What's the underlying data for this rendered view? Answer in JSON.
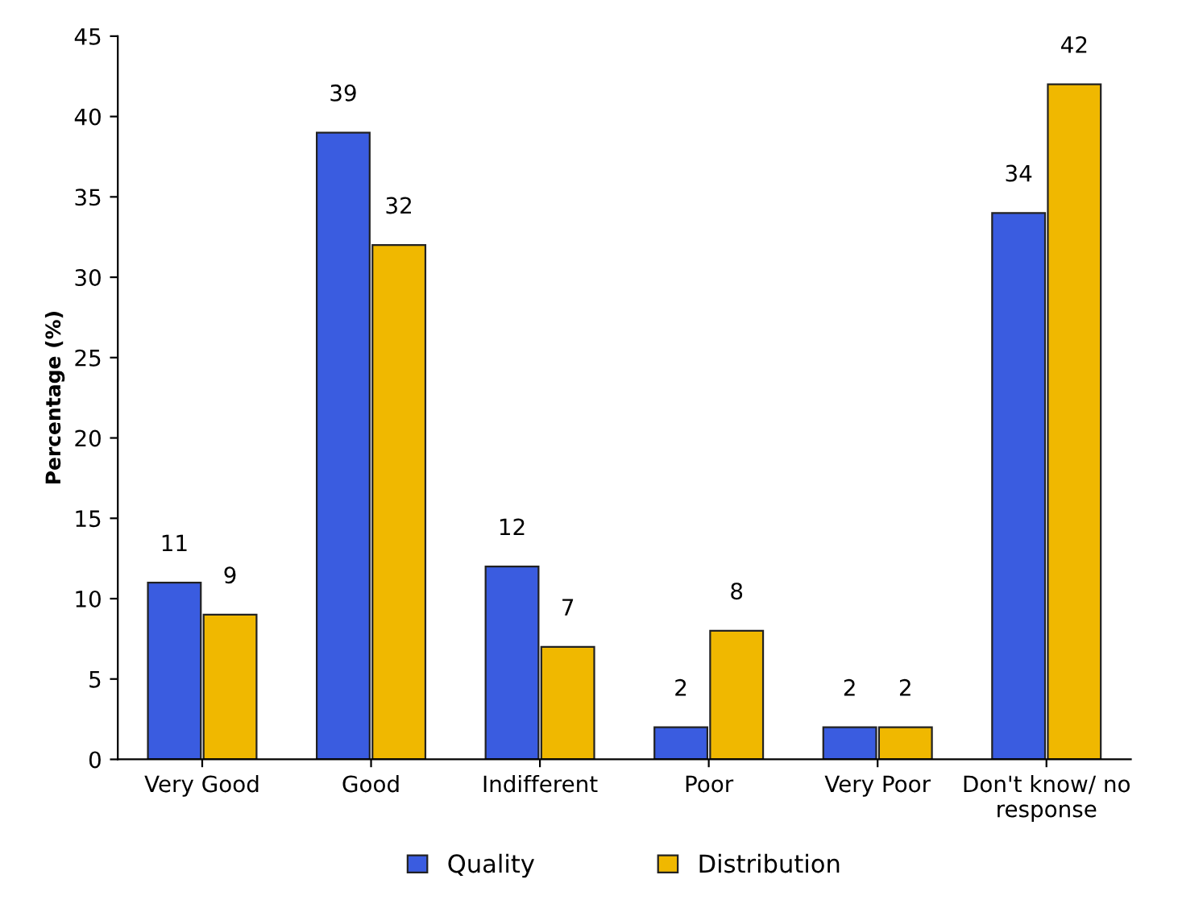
{
  "chart_data": {
    "type": "bar",
    "ylabel": "Percentage (%)",
    "categories": [
      "Very Good",
      "Good",
      "Indifferent",
      "Poor",
      "Very Poor",
      "Don't know/ no response"
    ],
    "series": [
      {
        "name": "Quality",
        "color": "#3a5ce0",
        "values": [
          11,
          39,
          12,
          2,
          2,
          34
        ]
      },
      {
        "name": "Distribution",
        "color": "#f0b800",
        "values": [
          9,
          32,
          7,
          8,
          2,
          42
        ]
      }
    ],
    "ylim": [
      0,
      45
    ],
    "yticks": [
      0,
      5,
      10,
      15,
      20,
      25,
      30,
      35,
      40,
      45
    ],
    "data_labels": true,
    "legend": "bottom",
    "grid": false
  }
}
